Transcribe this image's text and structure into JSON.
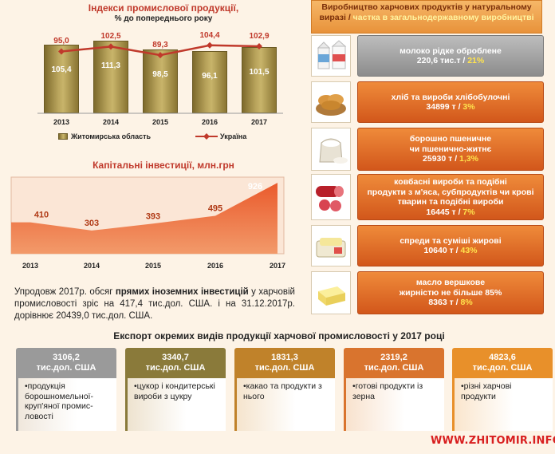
{
  "chart_data": [
    {
      "type": "bar",
      "title": "Індекси промислової продукції,",
      "subtitle": "% до попереднього року",
      "categories": [
        "2013",
        "2014",
        "2015",
        "2016",
        "2017"
      ],
      "series": [
        {
          "name": "Житомирська область",
          "type": "bar",
          "values": [
            105.4,
            111.3,
            98.5,
            96.1,
            101.5
          ],
          "labels": [
            "105,4",
            "111,3",
            "98,5",
            "96,1",
            "101,5"
          ],
          "color": "#a8924a"
        },
        {
          "name": "Україна",
          "type": "line",
          "values": [
            95.0,
            102.5,
            89.3,
            104.4,
            102.9
          ],
          "labels": [
            "95,0",
            "102,5",
            "89,3",
            "104,4",
            "102,9"
          ],
          "color": "#c0392b"
        }
      ],
      "ylim": [
        0,
        125
      ],
      "grid": false,
      "legend": "bottom"
    },
    {
      "type": "area",
      "title": "Капітальні інвестиції, млн.грн",
      "categories": [
        "2013",
        "2014",
        "2015",
        "2016",
        "2017"
      ],
      "values": [
        410,
        303,
        393,
        495,
        926
      ],
      "labels": [
        "410",
        "303",
        "393",
        "495",
        "926"
      ],
      "color": "#e3502a",
      "ylim": [
        0,
        1000
      ],
      "grid": false
    }
  ],
  "production": {
    "title_main": "Виробництво харчових продуктів у натуральному виразі / ",
    "title_hl": "частка в загальнодержавному виробництві",
    "items": [
      {
        "line1": "молоко рідке оброблене",
        "line2": "",
        "value": "220,6 тис.т",
        "share": "21%",
        "style": "grey",
        "icon": "milk-icon"
      },
      {
        "line1": "хліб та вироби хлібобулочні",
        "line2": "",
        "value": "34899 т",
        "share": "3%",
        "style": "orange",
        "icon": "bread-icon"
      },
      {
        "line1": "борошно пшеничне",
        "line2": "чи пшенично-житнє",
        "value": "25930 т",
        "share": "1,3%",
        "style": "orange",
        "icon": "flour-icon"
      },
      {
        "line1": "ковбасні вироби та подібні",
        "line2": "продукти з м'яса, субпродуктів чи крові тварин та подібні вироби",
        "value": "16445 т",
        "share": "7%",
        "style": "orange",
        "icon": "sausage-icon"
      },
      {
        "line1": "спреди та суміші жирові",
        "line2": "",
        "value": "10640 т",
        "share": "43%",
        "style": "orange",
        "icon": "spread-icon"
      },
      {
        "line1": "масло вершкове",
        "line2": "жирністю не більше 85%",
        "value": "8363 т",
        "share": "8%",
        "style": "orange",
        "icon": "butter-icon"
      }
    ]
  },
  "investment_text": {
    "p1": "Упродовж 2017р. обсяг ",
    "bold": "прямих іноземних інвестицій",
    "p2": " у харчовій промисловості зріс на 417,4 тис.дол. США. і на 31.12.2017р. дорівнює 20439,0 тис.дол. США."
  },
  "export": {
    "title": "Експорт окремих видів продукції харчової промисловості у 2017 році",
    "cards": [
      {
        "value": "3106,2",
        "unit": "тис.дол. США",
        "text": "продукція борошномельної-круп'яної промис-ловості",
        "color": "#9a9a9a"
      },
      {
        "value": "3340,7",
        "unit": "тис.дол. США",
        "text": "цукор і кондитерські вироби з цукру",
        "color": "#8a7a3a"
      },
      {
        "value": "1831,3",
        "unit": "тис.дол. США",
        "text": "какао та продукти з нього",
        "color": "#c0822a"
      },
      {
        "value": "2319,2",
        "unit": "тис.дол. США",
        "text": "готові продукти із зерна",
        "color": "#d9742e"
      },
      {
        "value": "4823,6",
        "unit": "тис.дол. США",
        "text": "різні харчові продукти",
        "color": "#e8902a"
      }
    ]
  },
  "watermark": "WWW.ZHITOMIR.INFO"
}
